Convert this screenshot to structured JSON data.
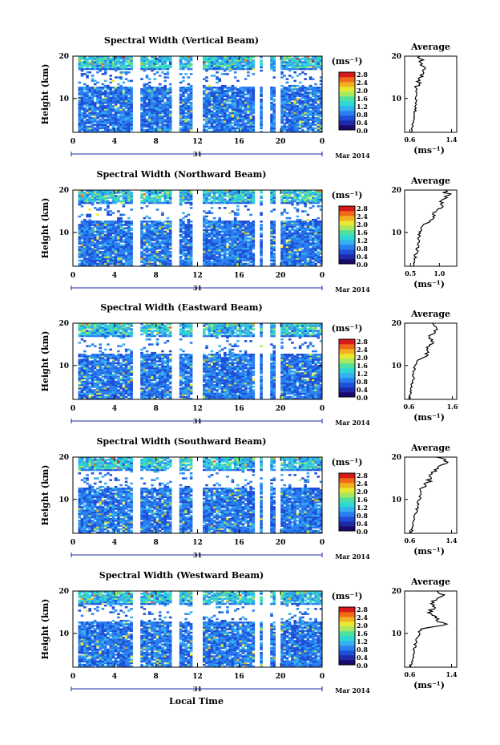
{
  "figure": {
    "xlabel": "Local Time",
    "ylabel": "Height (km)",
    "date_label": "31",
    "month_label": "Mar 2014",
    "colorbar_unit": "(ms⁻¹)",
    "avg_title": "Average",
    "avg_xlabel": "(ms⁻¹)",
    "colorbar_ticks": [
      "2.8",
      "2.4",
      "2.0",
      "1.6",
      "1.2",
      "0.8",
      "0.4",
      "0.0"
    ],
    "colorbar_range": [
      0.0,
      3.0
    ],
    "colormap": [
      "#1a0a6e",
      "#1f2aa8",
      "#1f4fd6",
      "#2a7ff0",
      "#35b0f0",
      "#2fd6d6",
      "#4de0a0",
      "#a8e860",
      "#e8e830",
      "#f0b020",
      "#f06a1a",
      "#d81a1a"
    ]
  },
  "chart_data": [
    {
      "type": "heatmap",
      "title": "Spectral Width (Vertical Beam)",
      "xlabel": "Local Time",
      "ylabel": "Height (km)",
      "x_ticks": [
        "0",
        "4",
        "8",
        "12",
        "16",
        "20",
        "0"
      ],
      "xlim": [
        0,
        24
      ],
      "y_ticks": [
        "10",
        "20"
      ],
      "ylim": [
        2,
        20
      ],
      "colorbar_label": "(ms⁻¹)",
      "colorbar_range": [
        0.0,
        3.0
      ],
      "data_gaps_hours": [
        [
          5.8,
          6.3
        ],
        [
          9.7,
          10.2
        ],
        [
          11.7,
          12.3
        ],
        [
          17.6,
          18.0
        ],
        [
          18.4,
          18.8
        ],
        [
          19.5,
          19.9
        ]
      ],
      "average_profile": {
        "title": "Average",
        "xlabel": "(ms⁻¹)",
        "x_ticks": [
          "0.6",
          "1.4"
        ],
        "xlim": [
          0.5,
          1.5
        ],
        "y_ticks": [
          "10",
          "20"
        ],
        "ylim": [
          2,
          20
        ],
        "height_km": [
          2,
          3,
          4,
          5,
          6,
          7,
          8,
          9,
          10,
          11,
          12,
          13,
          14,
          15,
          16,
          17,
          18,
          19,
          20
        ],
        "value": [
          0.62,
          0.64,
          0.65,
          0.66,
          0.68,
          0.7,
          0.7,
          0.72,
          0.72,
          0.74,
          0.72,
          0.75,
          0.78,
          0.8,
          0.82,
          0.85,
          0.86,
          0.82,
          0.8
        ]
      }
    },
    {
      "type": "heatmap",
      "title": "Spectral Width (Northward Beam)",
      "xlabel": "Local Time",
      "ylabel": "Height (km)",
      "x_ticks": [
        "0",
        "4",
        "8",
        "12",
        "16",
        "20",
        "0"
      ],
      "xlim": [
        0,
        24
      ],
      "y_ticks": [
        "10",
        "20"
      ],
      "ylim": [
        2,
        20
      ],
      "colorbar_label": "(ms⁻¹)",
      "colorbar_range": [
        0.0,
        3.0
      ],
      "data_gaps_hours": [
        [
          5.8,
          6.3
        ],
        [
          9.7,
          10.2
        ],
        [
          11.7,
          12.3
        ],
        [
          17.6,
          18.0
        ],
        [
          18.4,
          18.8
        ],
        [
          19.5,
          19.9
        ]
      ],
      "average_profile": {
        "title": "Average",
        "xlabel": "(ms⁻¹)",
        "x_ticks": [
          "0.5",
          "1.0"
        ],
        "xlim": [
          0.4,
          1.3
        ],
        "y_ticks": [
          "10",
          "20"
        ],
        "ylim": [
          2,
          20
        ],
        "height_km": [
          2,
          3,
          4,
          5,
          6,
          7,
          8,
          9,
          10,
          11,
          12,
          13,
          14,
          15,
          16,
          17,
          18,
          19,
          20
        ],
        "value": [
          0.55,
          0.56,
          0.58,
          0.6,
          0.62,
          0.63,
          0.64,
          0.65,
          0.66,
          0.68,
          0.75,
          0.82,
          0.9,
          0.95,
          1.0,
          1.05,
          1.1,
          1.15,
          1.05
        ]
      }
    },
    {
      "type": "heatmap",
      "title": "Spectral Width (Eastward Beam)",
      "xlabel": "Local Time",
      "ylabel": "Height (km)",
      "x_ticks": [
        "0",
        "4",
        "8",
        "12",
        "16",
        "20",
        "0"
      ],
      "xlim": [
        0,
        24
      ],
      "y_ticks": [
        "10",
        "20"
      ],
      "ylim": [
        2,
        20
      ],
      "colorbar_label": "(ms⁻¹)",
      "colorbar_range": [
        0.0,
        3.0
      ],
      "data_gaps_hours": [
        [
          5.8,
          6.3
        ],
        [
          9.7,
          10.2
        ],
        [
          11.7,
          12.3
        ],
        [
          17.6,
          18.0
        ],
        [
          18.4,
          18.8
        ],
        [
          19.5,
          19.9
        ]
      ],
      "average_profile": {
        "title": "Average",
        "xlabel": "(ms⁻¹)",
        "x_ticks": [
          "0.6",
          "1.6"
        ],
        "xlim": [
          0.5,
          1.7
        ],
        "y_ticks": [
          "10",
          "20"
        ],
        "ylim": [
          2,
          20
        ],
        "height_km": [
          2,
          3,
          4,
          5,
          6,
          7,
          8,
          9,
          10,
          11,
          12,
          13,
          14,
          15,
          16,
          17,
          18,
          19,
          20
        ],
        "value": [
          0.62,
          0.63,
          0.65,
          0.66,
          0.68,
          0.7,
          0.7,
          0.72,
          0.74,
          0.78,
          0.95,
          1.05,
          1.0,
          1.1,
          1.15,
          1.05,
          1.2,
          1.3,
          1.1
        ]
      }
    },
    {
      "type": "heatmap",
      "title": "Spectral Width (Southward Beam)",
      "xlabel": "Local Time",
      "ylabel": "Height (km)",
      "x_ticks": [
        "0",
        "4",
        "8",
        "12",
        "16",
        "20",
        "0"
      ],
      "xlim": [
        0,
        24
      ],
      "y_ticks": [
        "10",
        "20"
      ],
      "ylim": [
        2,
        20
      ],
      "colorbar_label": "(ms⁻¹)",
      "colorbar_range": [
        0.0,
        3.0
      ],
      "data_gaps_hours": [
        [
          5.8,
          6.3
        ],
        [
          9.7,
          10.2
        ],
        [
          11.7,
          12.3
        ],
        [
          17.6,
          18.0
        ],
        [
          18.4,
          18.8
        ],
        [
          19.5,
          19.9
        ]
      ],
      "average_profile": {
        "title": "Average",
        "xlabel": "(ms⁻¹)",
        "x_ticks": [
          "0.6",
          "1.4"
        ],
        "xlim": [
          0.5,
          1.5
        ],
        "y_ticks": [
          "10",
          "20"
        ],
        "ylim": [
          2,
          20
        ],
        "height_km": [
          2,
          3,
          4,
          5,
          6,
          7,
          8,
          9,
          10,
          11,
          12,
          13,
          14,
          15,
          16,
          17,
          18,
          19,
          20
        ],
        "value": [
          0.62,
          0.64,
          0.66,
          0.68,
          0.7,
          0.72,
          0.74,
          0.76,
          0.78,
          0.8,
          0.82,
          0.85,
          0.95,
          1.0,
          1.05,
          1.1,
          1.2,
          1.3,
          1.15
        ]
      }
    },
    {
      "type": "heatmap",
      "title": "Spectral Width (Westward Beam)",
      "xlabel": "Local Time",
      "ylabel": "Height (km)",
      "x_ticks": [
        "0",
        "4",
        "8",
        "12",
        "16",
        "20",
        "0"
      ],
      "xlim": [
        0,
        24
      ],
      "y_ticks": [
        "10",
        "20"
      ],
      "ylim": [
        2,
        20
      ],
      "colorbar_label": "(ms⁻¹)",
      "colorbar_range": [
        0.0,
        3.0
      ],
      "data_gaps_hours": [
        [
          5.8,
          6.3
        ],
        [
          9.7,
          10.2
        ],
        [
          11.7,
          12.3
        ],
        [
          17.6,
          18.0
        ],
        [
          18.4,
          18.8
        ],
        [
          19.5,
          19.9
        ]
      ],
      "average_profile": {
        "title": "Average",
        "xlabel": "(ms⁻¹)",
        "x_ticks": [
          "0.6",
          "1.4"
        ],
        "xlim": [
          0.5,
          1.5
        ],
        "y_ticks": [
          "10",
          "20"
        ],
        "ylim": [
          2,
          20
        ],
        "height_km": [
          2,
          3,
          4,
          5,
          6,
          7,
          8,
          9,
          10,
          11,
          12,
          13,
          14,
          15,
          16,
          17,
          18,
          19,
          20
        ],
        "value": [
          0.62,
          0.63,
          0.65,
          0.66,
          0.68,
          0.7,
          0.72,
          0.75,
          0.78,
          0.8,
          1.3,
          1.15,
          1.05,
          1.0,
          1.05,
          1.0,
          1.1,
          1.25,
          1.1
        ]
      }
    }
  ]
}
